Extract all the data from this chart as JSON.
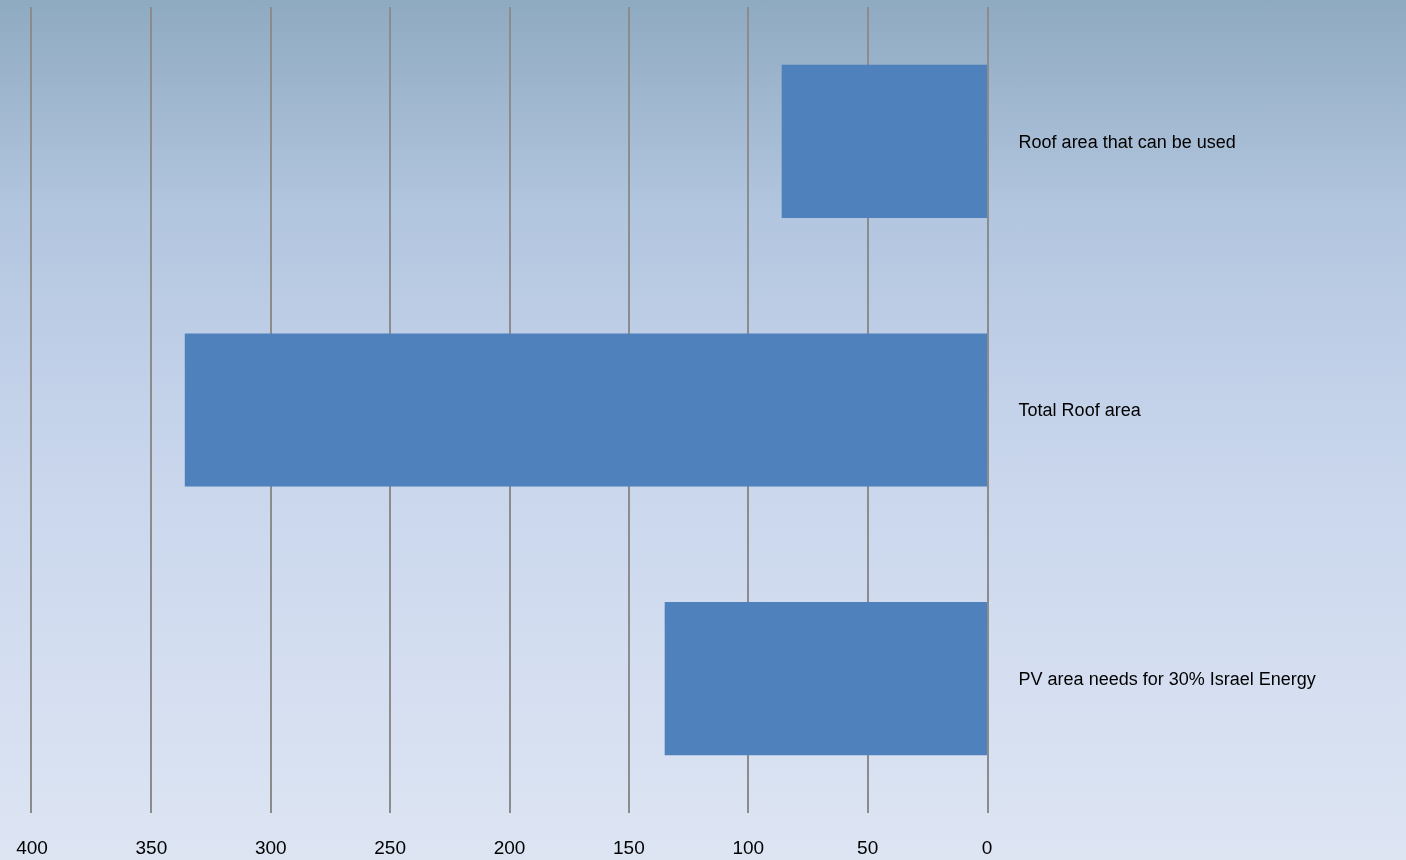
{
  "chart_data": {
    "type": "bar",
    "orientation": "horizontal",
    "categories": [
      "Roof area that can be used",
      "Total Roof area",
      "PV area needs for 30% Israel Energy"
    ],
    "values": [
      86,
      336,
      135
    ],
    "color": "#4f81bd",
    "xlim": [
      400,
      0
    ],
    "xticks": [
      400,
      350,
      300,
      250,
      200,
      150,
      100,
      50,
      0
    ],
    "grid": "x"
  }
}
